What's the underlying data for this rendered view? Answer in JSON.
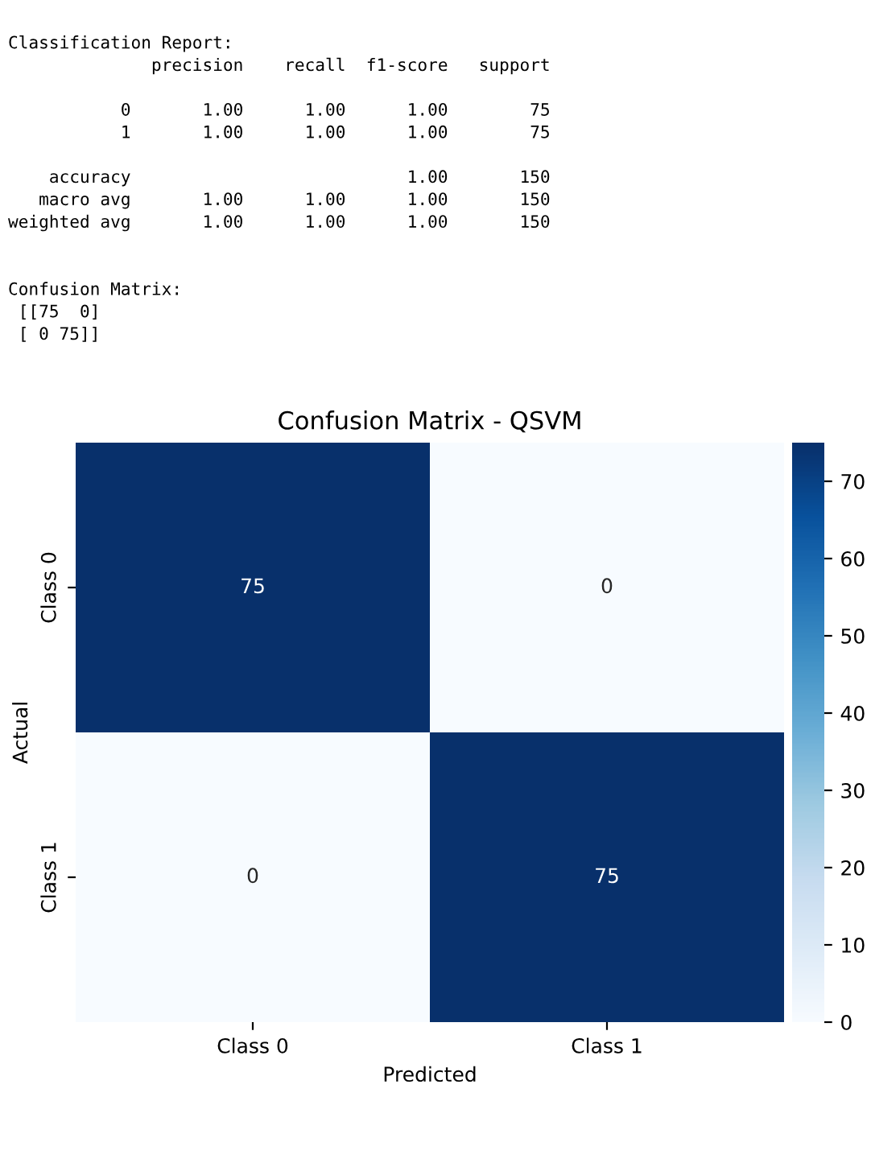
{
  "chart_data": {
    "type": "heatmap",
    "title": "Confusion Matrix - QSVM",
    "xlabel": "Predicted",
    "ylabel": "Actual",
    "categories": [
      "Class 0",
      "Class 1"
    ],
    "y_categories": [
      "Class 0",
      "Class 1"
    ],
    "cells": [
      [
        75,
        0
      ],
      [
        0,
        75
      ]
    ],
    "clim": [
      0,
      75
    ],
    "cticks": [
      0,
      10,
      20,
      30,
      40,
      50,
      60,
      70
    ],
    "data_labels": true,
    "annotations": [
      "Classification Report:\n              precision    recall  f1-score   support\n\n           0       1.00      1.00      1.00        75\n           1       1.00      1.00      1.00        75\n\n    accuracy                           1.00       150\n   macro avg       1.00      1.00      1.00       150\nweighted avg       1.00      1.00      1.00       150\n\n\nConfusion Matrix:\n [[75  0]\n [ 0 75]]"
    ]
  }
}
